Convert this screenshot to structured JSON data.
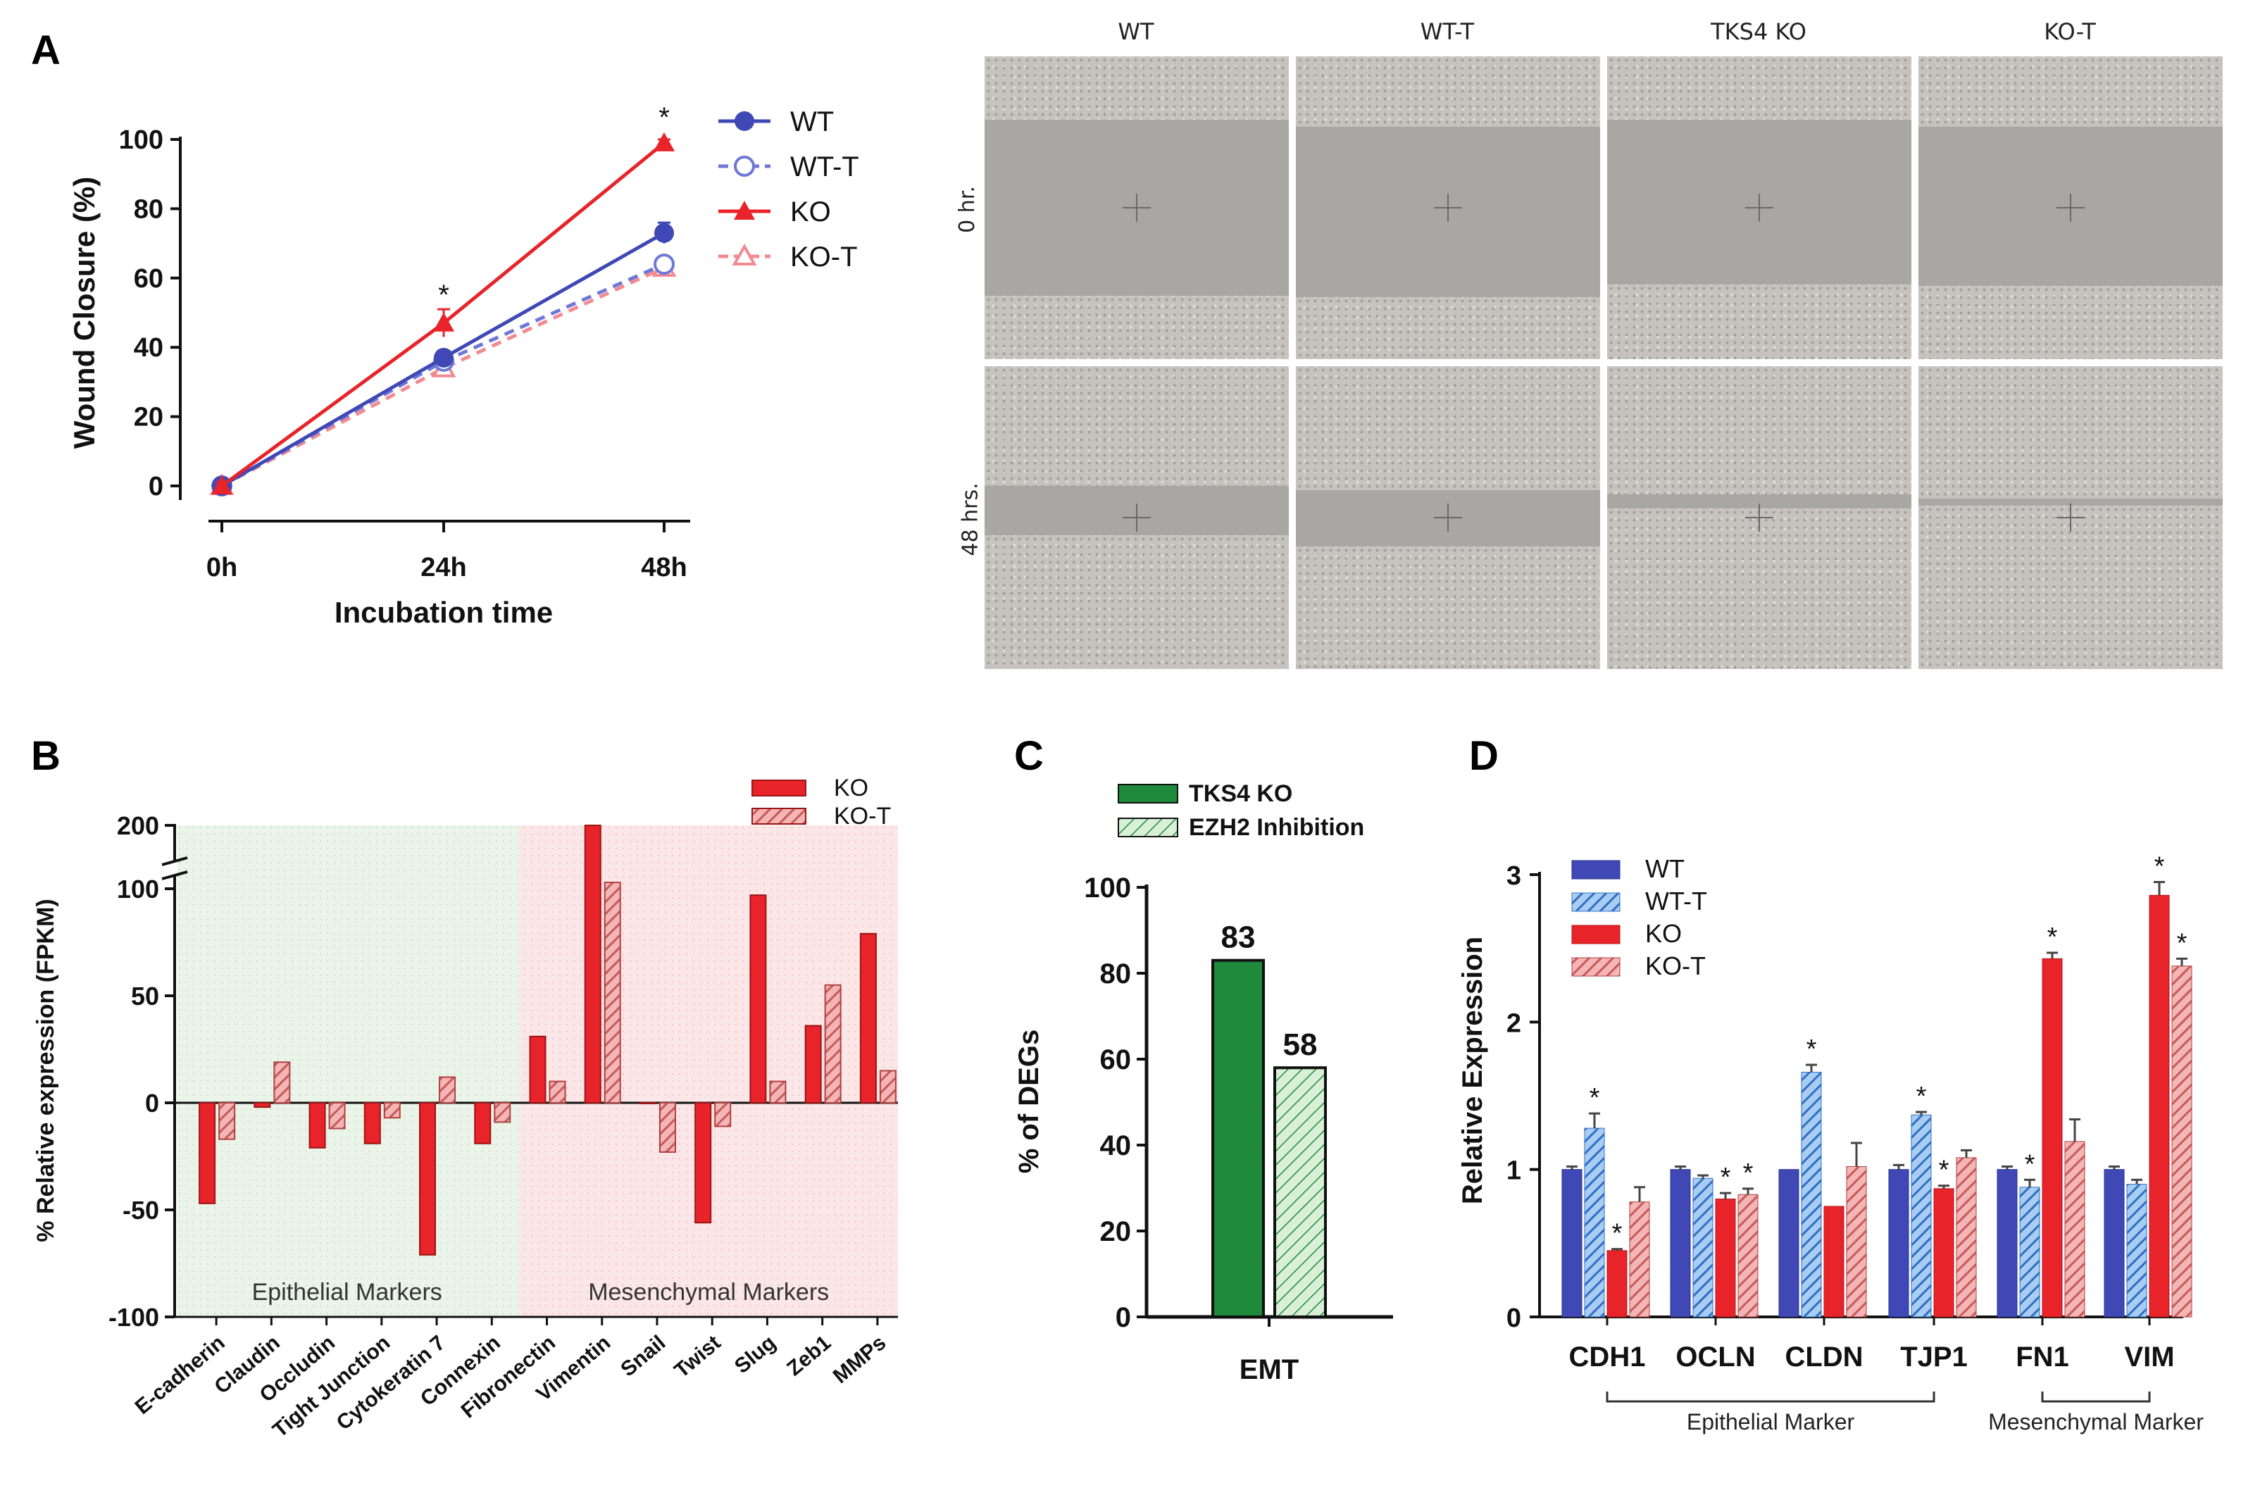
{
  "panels": {
    "A": {
      "letter": "A"
    },
    "B": {
      "letter": "B"
    },
    "C": {
      "letter": "C"
    },
    "D": {
      "letter": "D"
    }
  },
  "colors": {
    "blue": "#3f48b5",
    "light_blue": "#6f78d6",
    "red": "#e8232a",
    "pink": "#f28a91",
    "green": "#1f8a3c",
    "hatch_red": "#c85a5a"
  },
  "micrographs": {
    "columns": [
      "WT",
      "WT-T",
      "TKS4 KO",
      "KO-T"
    ],
    "rows": [
      "0 hr.",
      "48 hrs."
    ]
  },
  "chart_data": [
    {
      "id": "A",
      "type": "line",
      "title": "",
      "xlabel": "Incubation time",
      "ylabel": "Wound Closure (%)",
      "categories": [
        "0h",
        "24h",
        "48h"
      ],
      "ylim": [
        0,
        100
      ],
      "yticks": [
        "0",
        "20",
        "40",
        "60",
        "80",
        "100"
      ],
      "series": [
        {
          "name": "WT",
          "values": [
            0,
            37,
            73
          ],
          "errors": [
            1,
            2,
            3
          ],
          "style": "solid",
          "marker": "filled-circle",
          "color": "#3f48b5"
        },
        {
          "name": "WT-T",
          "values": [
            0,
            36,
            64
          ],
          "errors": [
            1,
            2,
            2
          ],
          "style": "dashed",
          "marker": "open-circle",
          "color": "#6f78d6"
        },
        {
          "name": "KO",
          "values": [
            0,
            47,
            99
          ],
          "errors": [
            1,
            4,
            1
          ],
          "style": "solid",
          "marker": "filled-triangle",
          "color": "#e8232a"
        },
        {
          "name": "KO-T",
          "values": [
            0,
            34,
            63
          ],
          "errors": [
            1,
            2,
            2
          ],
          "style": "dashed",
          "marker": "open-triangle",
          "color": "#f28a91"
        }
      ],
      "annotations": [
        {
          "category": "24h",
          "text": "*"
        },
        {
          "category": "48h",
          "text": "*"
        }
      ],
      "legend": "top-right"
    },
    {
      "id": "B",
      "type": "bar",
      "ylabel": "% Relative expression (FPKM)",
      "yticks": [
        "-100",
        "-50",
        "0",
        "50",
        "100",
        "200"
      ],
      "ylim": [
        -100,
        200
      ],
      "axis_break": [
        100,
        200
      ],
      "categories": [
        "E-cadherin",
        "Claudin",
        "Occludin",
        "Tight Junction",
        "Cytokeratin 7",
        "Connexin",
        "Fibronectin",
        "Vimentin",
        "Snail",
        "Twist",
        "Slug",
        "Zeb1",
        "MMPs"
      ],
      "series": [
        {
          "name": "KO",
          "values": [
            -47,
            -2,
            -21,
            -19,
            -71,
            -19,
            31,
            200,
            0,
            -56,
            97,
            36,
            79
          ],
          "pattern": "solid",
          "color": "#e8232a"
        },
        {
          "name": "KO-T",
          "values": [
            -17,
            19,
            -12,
            -7,
            12,
            -9,
            10,
            110,
            -23,
            -11,
            10,
            55,
            15
          ],
          "pattern": "hatched",
          "color": "#c85a5a"
        }
      ],
      "regions": [
        {
          "label": "Epithelial Markers",
          "from": 0,
          "to": 5,
          "color": "#e6f2e6"
        },
        {
          "label": "Mesenchymal Markers",
          "from": 6,
          "to": 12,
          "color": "#fbe3e5"
        }
      ],
      "legend": "top-right"
    },
    {
      "id": "C",
      "type": "bar",
      "ylabel": "% of DEGs",
      "categories": [
        "EMT"
      ],
      "ylim": [
        0,
        100
      ],
      "yticks": [
        "0",
        "20",
        "40",
        "60",
        "80",
        "100"
      ],
      "series": [
        {
          "name": "TKS4 KO",
          "values": [
            83
          ],
          "label": "83",
          "pattern": "solid",
          "color": "#1f8a3c"
        },
        {
          "name": "EZH2 Inhibition",
          "values": [
            58
          ],
          "label": "58",
          "pattern": "hatched",
          "color": "#bfe6bf"
        }
      ],
      "legend": "top"
    },
    {
      "id": "D",
      "type": "bar",
      "ylabel": "Relative Expression",
      "categories": [
        "CDH1",
        "OCLN",
        "CLDN",
        "TJP1",
        "FN1",
        "VIM"
      ],
      "ylim": [
        0,
        3
      ],
      "yticks": [
        "0",
        "1",
        "2",
        "3"
      ],
      "series": [
        {
          "name": "WT",
          "values": [
            1.0,
            1.0,
            1.0,
            1.0,
            1.0,
            1.0
          ],
          "errors": [
            0.02,
            0.02,
            0.0,
            0.03,
            0.02,
            0.02
          ],
          "pattern": "solid",
          "color": "#3f48b5"
        },
        {
          "name": "WT-T",
          "values": [
            1.28,
            0.94,
            1.66,
            1.37,
            0.88,
            0.9
          ],
          "errors": [
            0.1,
            0.02,
            0.05,
            0.02,
            0.05,
            0.03
          ],
          "pattern": "hatched",
          "color": "#4a8fd8"
        },
        {
          "name": "KO",
          "values": [
            0.45,
            0.8,
            0.75,
            0.87,
            2.43,
            2.86
          ],
          "errors": [
            0.01,
            0.04,
            0.0,
            0.02,
            0.04,
            0.09
          ],
          "pattern": "solid",
          "color": "#e8232a"
        },
        {
          "name": "KO-T",
          "values": [
            0.78,
            0.83,
            1.02,
            1.08,
            1.19,
            2.38
          ],
          "errors": [
            0.1,
            0.04,
            0.16,
            0.05,
            0.15,
            0.05
          ],
          "pattern": "hatched",
          "color": "#c85a5a"
        }
      ],
      "stars": [
        {
          "category": "CDH1",
          "series": "WT-T"
        },
        {
          "category": "CDH1",
          "series": "KO"
        },
        {
          "category": "OCLN",
          "series": "KO"
        },
        {
          "category": "OCLN",
          "series": "KO-T"
        },
        {
          "category": "CLDN",
          "series": "WT-T"
        },
        {
          "category": "TJP1",
          "series": "WT-T"
        },
        {
          "category": "TJP1",
          "series": "KO"
        },
        {
          "category": "FN1",
          "series": "WT-T"
        },
        {
          "category": "FN1",
          "series": "KO"
        },
        {
          "category": "VIM",
          "series": "KO"
        },
        {
          "category": "VIM",
          "series": "KO-T"
        }
      ],
      "groups": [
        {
          "label": "Epithelial Marker",
          "from": "CDH1",
          "to": "TJP1"
        },
        {
          "label": "Mesenchymal Marker",
          "from": "FN1",
          "to": "VIM"
        }
      ],
      "legend": "top-left"
    }
  ]
}
